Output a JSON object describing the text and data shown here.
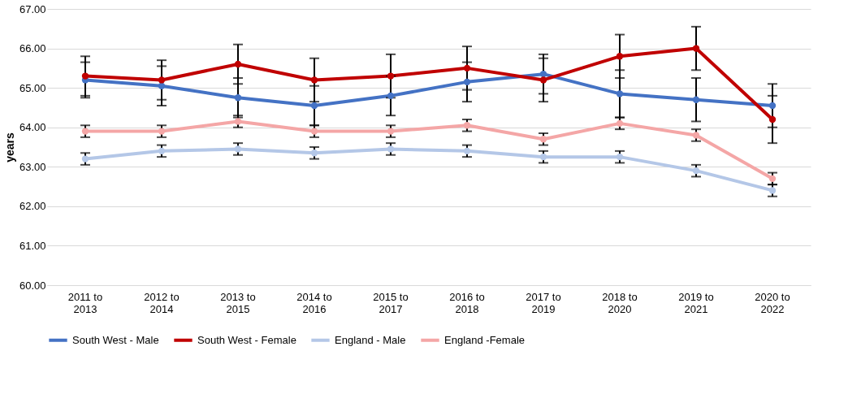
{
  "chart_data": {
    "type": "line",
    "ylabel": "years",
    "categories": [
      "2011 to 2013",
      "2012 to 2014",
      "2013 to 2015",
      "2014 to 2016",
      "2015 to 2017",
      "2016 to 2018",
      "2017 to 2019",
      "2018 to 2020",
      "2019 to 2021",
      "2020 to 2022"
    ],
    "ylim": [
      60,
      67
    ],
    "yticks": [
      {
        "value": 60,
        "label": "60.00"
      },
      {
        "value": 61,
        "label": "61.00"
      },
      {
        "value": 62,
        "label": "62.00"
      },
      {
        "value": 63,
        "label": "63.00"
      },
      {
        "value": 64,
        "label": "64.00"
      },
      {
        "value": 65,
        "label": "65.00"
      },
      {
        "value": 66,
        "label": "66.00"
      },
      {
        "value": 67,
        "label": "67.00"
      }
    ],
    "grid": "y",
    "legend": "bottom",
    "marker": "circle",
    "line_style": "solid",
    "series": [
      {
        "name": "South West - Male",
        "color": "#4472c4",
        "values": [
          65.2,
          65.05,
          64.75,
          64.55,
          64.8,
          65.15,
          65.35,
          64.85,
          64.7,
          64.55
        ],
        "errors": [
          0.45,
          0.5,
          0.5,
          0.5,
          0.5,
          0.5,
          0.5,
          0.6,
          0.55,
          0.55
        ]
      },
      {
        "name": "South West - Female",
        "color": "#c00000",
        "values": [
          65.3,
          65.2,
          65.6,
          65.2,
          65.3,
          65.5,
          65.2,
          65.8,
          66.0,
          64.2
        ],
        "errors": [
          0.5,
          0.5,
          0.5,
          0.55,
          0.55,
          0.55,
          0.55,
          0.55,
          0.55,
          0.6
        ]
      },
      {
        "name": "England - Male",
        "color": "#b4c7e7",
        "values": [
          63.2,
          63.4,
          63.45,
          63.35,
          63.45,
          63.4,
          63.25,
          63.25,
          62.9,
          62.4
        ],
        "errors": [
          0.15,
          0.15,
          0.15,
          0.15,
          0.15,
          0.15,
          0.15,
          0.15,
          0.15,
          0.15
        ]
      },
      {
        "name": "England -Female",
        "color": "#f4a6a6",
        "values": [
          63.9,
          63.9,
          64.15,
          63.9,
          63.9,
          64.05,
          63.7,
          64.1,
          63.8,
          62.7
        ],
        "errors": [
          0.15,
          0.15,
          0.15,
          0.15,
          0.15,
          0.15,
          0.15,
          0.15,
          0.15,
          0.15
        ]
      }
    ]
  }
}
